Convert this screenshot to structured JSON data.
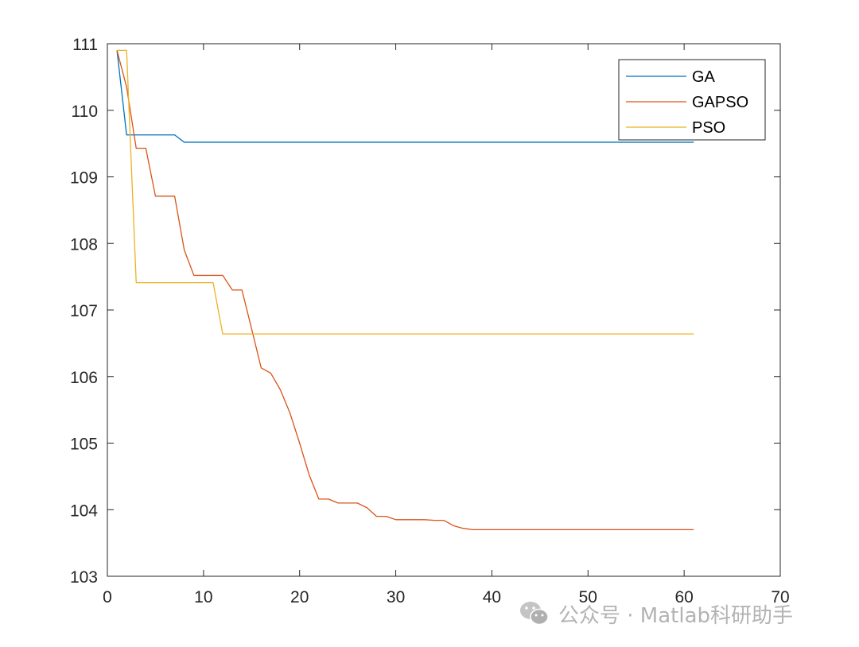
{
  "chart_data": {
    "type": "line",
    "title": "",
    "xlabel": "",
    "ylabel": "",
    "xlim": [
      0,
      70
    ],
    "ylim": [
      103,
      111
    ],
    "xticks": [
      0,
      10,
      20,
      30,
      40,
      50,
      60,
      70
    ],
    "yticks": [
      103,
      104,
      105,
      106,
      107,
      108,
      109,
      110,
      111
    ],
    "grid": false,
    "legend_position": "top-right",
    "series": [
      {
        "name": "GA",
        "color": "#0072BD",
        "points": [
          [
            1,
            110.9
          ],
          [
            2,
            109.63
          ],
          [
            3,
            109.63
          ],
          [
            4,
            109.63
          ],
          [
            5,
            109.63
          ],
          [
            6,
            109.63
          ],
          [
            7,
            109.63
          ],
          [
            8,
            109.52
          ],
          [
            61,
            109.52
          ]
        ]
      },
      {
        "name": "GAPSO",
        "color": "#D95319",
        "points": [
          [
            1,
            110.9
          ],
          [
            2,
            110.35
          ],
          [
            3,
            109.43
          ],
          [
            4,
            109.43
          ],
          [
            5,
            108.71
          ],
          [
            6,
            108.71
          ],
          [
            7,
            108.71
          ],
          [
            8,
            107.9
          ],
          [
            9,
            107.52
          ],
          [
            10,
            107.52
          ],
          [
            11,
            107.52
          ],
          [
            12,
            107.52
          ],
          [
            13,
            107.3
          ],
          [
            14,
            107.3
          ],
          [
            15,
            106.72
          ],
          [
            16,
            106.13
          ],
          [
            17,
            106.05
          ],
          [
            18,
            105.8
          ],
          [
            19,
            105.45
          ],
          [
            20,
            105.0
          ],
          [
            21,
            104.52
          ],
          [
            22,
            104.16
          ],
          [
            23,
            104.16
          ],
          [
            24,
            104.1
          ],
          [
            25,
            104.1
          ],
          [
            26,
            104.1
          ],
          [
            27,
            104.03
          ],
          [
            28,
            103.9
          ],
          [
            29,
            103.9
          ],
          [
            30,
            103.85
          ],
          [
            31,
            103.85
          ],
          [
            32,
            103.85
          ],
          [
            33,
            103.85
          ],
          [
            34,
            103.84
          ],
          [
            35,
            103.84
          ],
          [
            36,
            103.76
          ],
          [
            37,
            103.72
          ],
          [
            38,
            103.7
          ],
          [
            39,
            103.7
          ],
          [
            61,
            103.7
          ]
        ]
      },
      {
        "name": "PSO",
        "color": "#EDB120",
        "points": [
          [
            1,
            110.9
          ],
          [
            2,
            110.9
          ],
          [
            3,
            107.41
          ],
          [
            4,
            107.41
          ],
          [
            5,
            107.41
          ],
          [
            6,
            107.41
          ],
          [
            7,
            107.41
          ],
          [
            8,
            107.41
          ],
          [
            9,
            107.41
          ],
          [
            10,
            107.41
          ],
          [
            11,
            107.41
          ],
          [
            12,
            106.64
          ],
          [
            61,
            106.64
          ]
        ]
      }
    ]
  },
  "watermark": {
    "icon": "wechat-icon",
    "text": "公众号 · Matlab科研助手"
  }
}
